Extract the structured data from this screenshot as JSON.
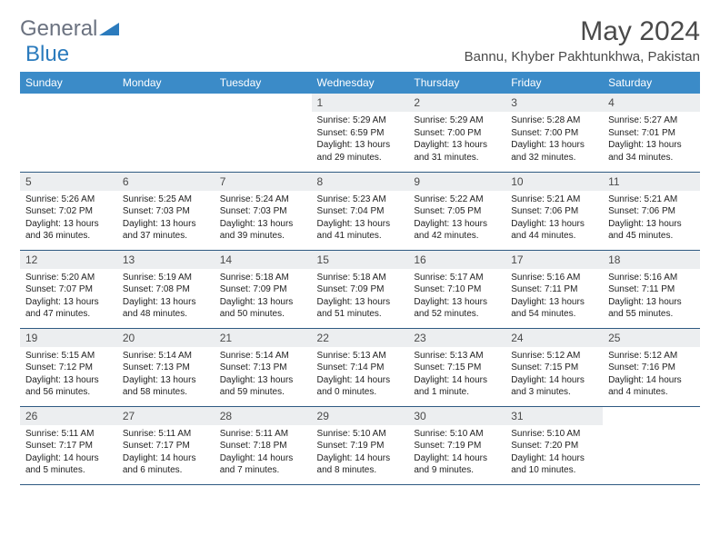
{
  "brand": {
    "part1": "General",
    "part2": "Blue"
  },
  "title": "May 2024",
  "location": "Bannu, Khyber Pakhtunkhwa, Pakistan",
  "colors": {
    "header_bg": "#3b8bc8",
    "header_text": "#ffffff",
    "daynum_bg": "#eceef0",
    "row_border": "#2f5a82",
    "brand_gray": "#6b7280",
    "brand_blue": "#2b7bbd",
    "text": "#222222"
  },
  "weekdays": [
    "Sunday",
    "Monday",
    "Tuesday",
    "Wednesday",
    "Thursday",
    "Friday",
    "Saturday"
  ],
  "weeks": [
    [
      null,
      null,
      null,
      {
        "n": "1",
        "sr": "Sunrise: 5:29 AM",
        "ss": "Sunset: 6:59 PM",
        "d1": "Daylight: 13 hours",
        "d2": "and 29 minutes."
      },
      {
        "n": "2",
        "sr": "Sunrise: 5:29 AM",
        "ss": "Sunset: 7:00 PM",
        "d1": "Daylight: 13 hours",
        "d2": "and 31 minutes."
      },
      {
        "n": "3",
        "sr": "Sunrise: 5:28 AM",
        "ss": "Sunset: 7:00 PM",
        "d1": "Daylight: 13 hours",
        "d2": "and 32 minutes."
      },
      {
        "n": "4",
        "sr": "Sunrise: 5:27 AM",
        "ss": "Sunset: 7:01 PM",
        "d1": "Daylight: 13 hours",
        "d2": "and 34 minutes."
      }
    ],
    [
      {
        "n": "5",
        "sr": "Sunrise: 5:26 AM",
        "ss": "Sunset: 7:02 PM",
        "d1": "Daylight: 13 hours",
        "d2": "and 36 minutes."
      },
      {
        "n": "6",
        "sr": "Sunrise: 5:25 AM",
        "ss": "Sunset: 7:03 PM",
        "d1": "Daylight: 13 hours",
        "d2": "and 37 minutes."
      },
      {
        "n": "7",
        "sr": "Sunrise: 5:24 AM",
        "ss": "Sunset: 7:03 PM",
        "d1": "Daylight: 13 hours",
        "d2": "and 39 minutes."
      },
      {
        "n": "8",
        "sr": "Sunrise: 5:23 AM",
        "ss": "Sunset: 7:04 PM",
        "d1": "Daylight: 13 hours",
        "d2": "and 41 minutes."
      },
      {
        "n": "9",
        "sr": "Sunrise: 5:22 AM",
        "ss": "Sunset: 7:05 PM",
        "d1": "Daylight: 13 hours",
        "d2": "and 42 minutes."
      },
      {
        "n": "10",
        "sr": "Sunrise: 5:21 AM",
        "ss": "Sunset: 7:06 PM",
        "d1": "Daylight: 13 hours",
        "d2": "and 44 minutes."
      },
      {
        "n": "11",
        "sr": "Sunrise: 5:21 AM",
        "ss": "Sunset: 7:06 PM",
        "d1": "Daylight: 13 hours",
        "d2": "and 45 minutes."
      }
    ],
    [
      {
        "n": "12",
        "sr": "Sunrise: 5:20 AM",
        "ss": "Sunset: 7:07 PM",
        "d1": "Daylight: 13 hours",
        "d2": "and 47 minutes."
      },
      {
        "n": "13",
        "sr": "Sunrise: 5:19 AM",
        "ss": "Sunset: 7:08 PM",
        "d1": "Daylight: 13 hours",
        "d2": "and 48 minutes."
      },
      {
        "n": "14",
        "sr": "Sunrise: 5:18 AM",
        "ss": "Sunset: 7:09 PM",
        "d1": "Daylight: 13 hours",
        "d2": "and 50 minutes."
      },
      {
        "n": "15",
        "sr": "Sunrise: 5:18 AM",
        "ss": "Sunset: 7:09 PM",
        "d1": "Daylight: 13 hours",
        "d2": "and 51 minutes."
      },
      {
        "n": "16",
        "sr": "Sunrise: 5:17 AM",
        "ss": "Sunset: 7:10 PM",
        "d1": "Daylight: 13 hours",
        "d2": "and 52 minutes."
      },
      {
        "n": "17",
        "sr": "Sunrise: 5:16 AM",
        "ss": "Sunset: 7:11 PM",
        "d1": "Daylight: 13 hours",
        "d2": "and 54 minutes."
      },
      {
        "n": "18",
        "sr": "Sunrise: 5:16 AM",
        "ss": "Sunset: 7:11 PM",
        "d1": "Daylight: 13 hours",
        "d2": "and 55 minutes."
      }
    ],
    [
      {
        "n": "19",
        "sr": "Sunrise: 5:15 AM",
        "ss": "Sunset: 7:12 PM",
        "d1": "Daylight: 13 hours",
        "d2": "and 56 minutes."
      },
      {
        "n": "20",
        "sr": "Sunrise: 5:14 AM",
        "ss": "Sunset: 7:13 PM",
        "d1": "Daylight: 13 hours",
        "d2": "and 58 minutes."
      },
      {
        "n": "21",
        "sr": "Sunrise: 5:14 AM",
        "ss": "Sunset: 7:13 PM",
        "d1": "Daylight: 13 hours",
        "d2": "and 59 minutes."
      },
      {
        "n": "22",
        "sr": "Sunrise: 5:13 AM",
        "ss": "Sunset: 7:14 PM",
        "d1": "Daylight: 14 hours",
        "d2": "and 0 minutes."
      },
      {
        "n": "23",
        "sr": "Sunrise: 5:13 AM",
        "ss": "Sunset: 7:15 PM",
        "d1": "Daylight: 14 hours",
        "d2": "and 1 minute."
      },
      {
        "n": "24",
        "sr": "Sunrise: 5:12 AM",
        "ss": "Sunset: 7:15 PM",
        "d1": "Daylight: 14 hours",
        "d2": "and 3 minutes."
      },
      {
        "n": "25",
        "sr": "Sunrise: 5:12 AM",
        "ss": "Sunset: 7:16 PM",
        "d1": "Daylight: 14 hours",
        "d2": "and 4 minutes."
      }
    ],
    [
      {
        "n": "26",
        "sr": "Sunrise: 5:11 AM",
        "ss": "Sunset: 7:17 PM",
        "d1": "Daylight: 14 hours",
        "d2": "and 5 minutes."
      },
      {
        "n": "27",
        "sr": "Sunrise: 5:11 AM",
        "ss": "Sunset: 7:17 PM",
        "d1": "Daylight: 14 hours",
        "d2": "and 6 minutes."
      },
      {
        "n": "28",
        "sr": "Sunrise: 5:11 AM",
        "ss": "Sunset: 7:18 PM",
        "d1": "Daylight: 14 hours",
        "d2": "and 7 minutes."
      },
      {
        "n": "29",
        "sr": "Sunrise: 5:10 AM",
        "ss": "Sunset: 7:19 PM",
        "d1": "Daylight: 14 hours",
        "d2": "and 8 minutes."
      },
      {
        "n": "30",
        "sr": "Sunrise: 5:10 AM",
        "ss": "Sunset: 7:19 PM",
        "d1": "Daylight: 14 hours",
        "d2": "and 9 minutes."
      },
      {
        "n": "31",
        "sr": "Sunrise: 5:10 AM",
        "ss": "Sunset: 7:20 PM",
        "d1": "Daylight: 14 hours",
        "d2": "and 10 minutes."
      },
      null
    ]
  ]
}
